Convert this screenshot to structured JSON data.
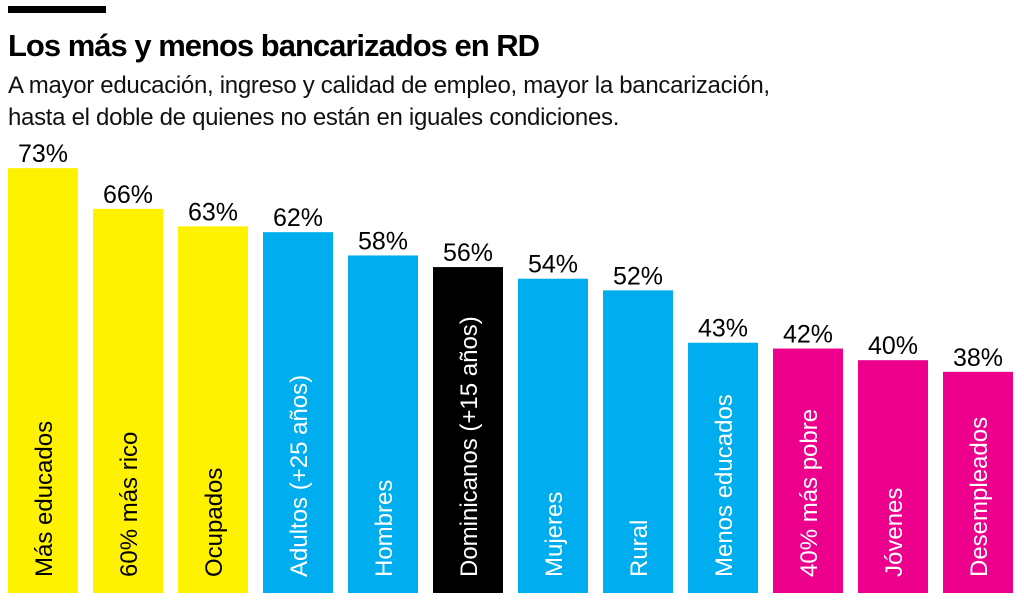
{
  "chart_data": {
    "type": "bar",
    "title": "Los más y menos bancarizados en RD",
    "subtitle": [
      "A mayor educación, ingreso y calidad de empleo, mayor la bancarización,",
      "hasta el doble  de quienes no están en iguales condiciones."
    ],
    "categories": [
      "Más educados",
      "60% más rico",
      "Ocupados",
      "Adultos (+25 años)",
      "Hombres",
      "Dominicanos (+15 años)",
      "Mujeres",
      "Rural",
      "Menos educados",
      "40% más pobre",
      "Jóvenes",
      "Desempleados"
    ],
    "values": [
      73,
      66,
      63,
      62,
      58,
      56,
      54,
      52,
      43,
      42,
      40,
      38
    ],
    "value_labels": [
      "73%",
      "66%",
      "63%",
      "62%",
      "58%",
      "56%",
      "54%",
      "52%",
      "43%",
      "42%",
      "40%",
      "38%"
    ],
    "colors": [
      "#FFF200",
      "#FFF200",
      "#FFF200",
      "#00AEEF",
      "#00AEEF",
      "#000000",
      "#00AEEF",
      "#00AEEF",
      "#00AEEF",
      "#EC008C",
      "#EC008C",
      "#EC008C"
    ],
    "label_colors": [
      "#000000",
      "#000000",
      "#000000",
      "#FFFFFF",
      "#FFFFFF",
      "#FFFFFF",
      "#FFFFFF",
      "#FFFFFF",
      "#FFFFFF",
      "#FFFFFF",
      "#FFFFFF",
      "#FFFFFF"
    ],
    "ylim": [
      0,
      100
    ],
    "grid": false,
    "xlabel": "",
    "ylabel": ""
  }
}
